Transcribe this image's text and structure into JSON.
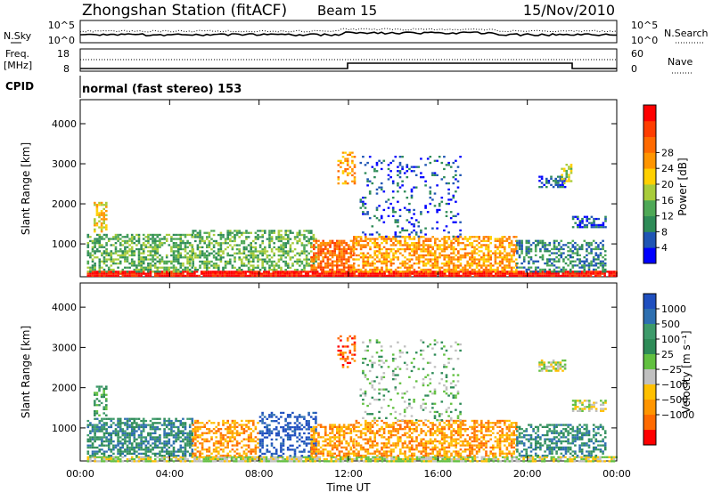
{
  "header": {
    "station": "Zhongshan Station (fitACF)",
    "beam": "Beam 15",
    "date": "15/Nov/2010"
  },
  "status_panels": {
    "nsky_label": "N.Sky",
    "nsearch_label": "N.Search",
    "count_ticks": [
      "10^5",
      "10^0"
    ],
    "freq_label_1": "Freq.",
    "freq_label_2": "[MHz]",
    "freq_ticks": [
      "18",
      "8"
    ],
    "nave_label": "Nave",
    "nave_ticks": [
      "60",
      "0"
    ],
    "cpid_label": "CPID",
    "cpid_text": "normal (fast stereo) 153"
  },
  "chart_data": [
    {
      "type": "heatmap",
      "title": "",
      "xlabel": "",
      "ylabel": "Slant Range [km]",
      "x_ticks": [
        "00:00",
        "04:00",
        "08:00",
        "12:00",
        "16:00",
        "20:00",
        "00:00"
      ],
      "xlim_hours": [
        0,
        24
      ],
      "y_ticks": [
        1000,
        2000,
        3000,
        4000
      ],
      "ylim": [
        180,
        4600
      ],
      "colorbar": {
        "label": "Power [dB]",
        "ticks": [
          "4",
          "8",
          "12",
          "16",
          "20",
          "24",
          "28"
        ],
        "colors": [
          "#0000ff",
          "#1f55b4",
          "#2e8b57",
          "#4ea856",
          "#a8cc3a",
          "#ffd000",
          "#ff9500",
          "#ff6a00",
          "#ff3d00",
          "#ff0000"
        ]
      },
      "scatter_regions": [
        {
          "t0": 0.3,
          "t1": 24,
          "r0": 190,
          "r1": 330,
          "level": 9,
          "density": 0.95
        },
        {
          "t0": 0.3,
          "t1": 5,
          "r0": 330,
          "r1": 1250,
          "level": 3,
          "density": 0.6
        },
        {
          "t0": 0.6,
          "t1": 1.2,
          "r0": 1300,
          "r1": 2050,
          "level": 5,
          "density": 0.5
        },
        {
          "t0": 5,
          "t1": 10.5,
          "r0": 330,
          "r1": 1350,
          "level": 3,
          "density": 0.5
        },
        {
          "t0": 10.3,
          "t1": 12.2,
          "r0": 330,
          "r1": 1100,
          "level": 7,
          "density": 0.7
        },
        {
          "t0": 11.5,
          "t1": 12.3,
          "r0": 2500,
          "r1": 3300,
          "level": 6,
          "density": 0.4
        },
        {
          "t0": 12.2,
          "t1": 19.5,
          "r0": 330,
          "r1": 1200,
          "level": 6,
          "density": 0.6
        },
        {
          "t0": 12.5,
          "t1": 17,
          "r0": 1200,
          "r1": 3200,
          "level": 1,
          "density": 0.15
        },
        {
          "t0": 19.5,
          "t1": 23.5,
          "r0": 330,
          "r1": 1100,
          "level": 2,
          "density": 0.5
        },
        {
          "t0": 20.5,
          "t1": 21.7,
          "r0": 2400,
          "r1": 2700,
          "level": 1,
          "density": 0.6
        },
        {
          "t0": 22,
          "t1": 23.5,
          "r0": 1400,
          "r1": 1700,
          "level": 1,
          "density": 0.6
        },
        {
          "t0": 21.5,
          "t1": 22,
          "r0": 2500,
          "r1": 3000,
          "level": 4,
          "density": 0.5
        }
      ]
    },
    {
      "type": "heatmap",
      "title": "",
      "xlabel": "Time UT",
      "ylabel": "Slant Range [km]",
      "x_ticks": [
        "00:00",
        "04:00",
        "08:00",
        "12:00",
        "16:00",
        "20:00",
        "00:00"
      ],
      "xlim_hours": [
        0,
        24
      ],
      "y_ticks": [
        1000,
        2000,
        3000,
        4000
      ],
      "ylim": [
        180,
        4600
      ],
      "colorbar": {
        "label": "Velocity [m s⁻¹]",
        "ticks": [
          "1000",
          "500",
          "100",
          "25",
          "−25",
          "−100",
          "−500",
          "−1000"
        ],
        "colors": [
          "#1f4fbf",
          "#2e6fb0",
          "#3d9a6a",
          "#2e8b57",
          "#62c040",
          "#c0c0c0",
          "#ffc000",
          "#ff9500",
          "#ff6a00",
          "#ff0000"
        ]
      },
      "scatter_regions": [
        {
          "t0": 0.3,
          "t1": 24,
          "r0": 190,
          "r1": 300,
          "level": 5,
          "density": 0.8
        },
        {
          "t0": 0.3,
          "t1": 5,
          "r0": 300,
          "r1": 1250,
          "level": 2,
          "density": 0.6
        },
        {
          "t0": 0.6,
          "t1": 1.2,
          "r0": 1300,
          "r1": 2050,
          "level": 3,
          "density": 0.5
        },
        {
          "t0": 5,
          "t1": 8,
          "r0": 300,
          "r1": 1200,
          "level": 7,
          "density": 0.5
        },
        {
          "t0": 8,
          "t1": 10.5,
          "r0": 300,
          "r1": 1400,
          "level": 0,
          "density": 0.45
        },
        {
          "t0": 10.3,
          "t1": 12.2,
          "r0": 300,
          "r1": 1100,
          "level": 7,
          "density": 0.6
        },
        {
          "t0": 11.5,
          "t1": 12.3,
          "r0": 2500,
          "r1": 3300,
          "level": 8,
          "density": 0.4
        },
        {
          "t0": 12.2,
          "t1": 19.5,
          "r0": 300,
          "r1": 1200,
          "level": 7,
          "density": 0.55
        },
        {
          "t0": 12.5,
          "t1": 17,
          "r0": 1200,
          "r1": 3200,
          "level": 4,
          "density": 0.15
        },
        {
          "t0": 19.5,
          "t1": 23.5,
          "r0": 300,
          "r1": 1100,
          "level": 2,
          "density": 0.5
        },
        {
          "t0": 20.5,
          "t1": 21.7,
          "r0": 2400,
          "r1": 2700,
          "level": 5,
          "density": 0.6
        },
        {
          "t0": 22,
          "t1": 23.5,
          "r0": 1400,
          "r1": 1700,
          "level": 5,
          "density": 0.6
        }
      ]
    }
  ]
}
